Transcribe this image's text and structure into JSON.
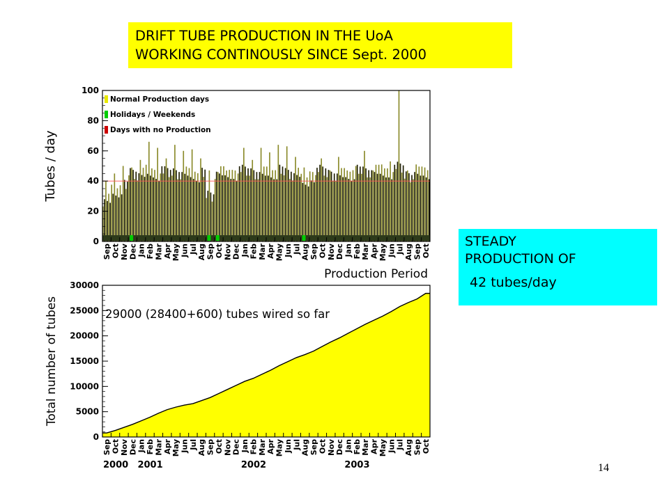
{
  "banner": {
    "line1": "DRIFT TUBE PRODUCTION IN THE UoA",
    "line2": "WORKING CONTINOUSLY SINCE Sept. 2000"
  },
  "callout": {
    "line1": "STEADY",
    "line2": "PRODUCTION OF",
    "line3": "42 tubes/day"
  },
  "page_number": "14",
  "colors": {
    "banner_bg": "#ffff00",
    "callout_bg": "#00ffff",
    "production_bars": "#7a7a1a",
    "cumulative_fill": "#ffff00",
    "holiday_marker": "#00cc00",
    "no_production_marker": "#cc0000"
  },
  "chart_data": [
    {
      "type": "bar",
      "ylabel": "Tubes / day",
      "xlabel": "Production Period",
      "ylim": [
        0,
        100
      ],
      "yticks": [
        "0",
        "20",
        "40",
        "60",
        "80",
        "100"
      ],
      "grid": false,
      "legend_position": "top-left",
      "legend": [
        "Normal Production days",
        "Holidays / Weekends",
        "Days with no Production"
      ],
      "reference_line": 40,
      "categories": [
        "Sep",
        "Oct",
        "Nov",
        "Dec",
        "Jan",
        "Feb",
        "Mar",
        "Apr",
        "May",
        "Jun",
        "Jul",
        "Aug",
        "Sep",
        "Oct",
        "Nov",
        "Dec",
        "Jan",
        "Feb",
        "Mar",
        "Apr",
        "May",
        "Jun",
        "Jul",
        "Aug",
        "Sep",
        "Oct",
        "Nov",
        "Dec",
        "Jan",
        "Feb",
        "Mar",
        "Apr",
        "May",
        "Jun",
        "Jul",
        "Aug",
        "Sep",
        "Oct"
      ],
      "values": [
        28,
        34,
        36,
        45,
        44,
        46,
        45,
        45,
        46,
        46,
        45,
        44,
        30,
        45,
        45,
        45,
        46,
        46,
        46,
        46,
        46,
        45,
        44,
        40,
        44,
        46,
        45,
        45,
        45,
        46,
        46,
        46,
        46,
        46,
        48,
        44,
        46,
        46
      ],
      "peaks": [
        40,
        45,
        50,
        49,
        54,
        66,
        62,
        55,
        64,
        60,
        61,
        55,
        47,
        46,
        47,
        47,
        62,
        54,
        62,
        59,
        64,
        63,
        56,
        49,
        46,
        55,
        47,
        56,
        47,
        50,
        60,
        47,
        51,
        53,
        100,
        47,
        51,
        49
      ]
    },
    {
      "type": "area",
      "ylabel": "Total number of tubes",
      "annotation": "29000 (28400+600) tubes wired so far",
      "ylim": [
        0,
        30000
      ],
      "yticks": [
        "0",
        "5000",
        "10000",
        "15000",
        "20000",
        "25000",
        "30000"
      ],
      "grid": false,
      "categories": [
        "Sep",
        "Oct",
        "Nov",
        "Dec",
        "Jan",
        "Feb",
        "Mar",
        "Apr",
        "May",
        "Jun",
        "Jul",
        "Aug",
        "Sep",
        "Oct",
        "Nov",
        "Dec",
        "Jan",
        "Feb",
        "Mar",
        "Apr",
        "May",
        "Jun",
        "Jul",
        "Aug",
        "Sep",
        "Oct",
        "Nov",
        "Dec",
        "Jan",
        "Feb",
        "Mar",
        "Apr",
        "May",
        "Jun",
        "Jul",
        "Aug",
        "Sep",
        "Oct"
      ],
      "years": [
        "2000",
        "2001",
        "2002",
        "2003"
      ],
      "values": [
        800,
        1300,
        1900,
        2500,
        3200,
        3900,
        4700,
        5400,
        5900,
        6300,
        6600,
        7200,
        7800,
        8600,
        9400,
        10200,
        11000,
        11600,
        12400,
        13200,
        14100,
        14900,
        15700,
        16300,
        17000,
        17900,
        18800,
        19600,
        20500,
        21400,
        22300,
        23100,
        23900,
        24800,
        25800,
        26600,
        27300,
        28400
      ]
    }
  ]
}
